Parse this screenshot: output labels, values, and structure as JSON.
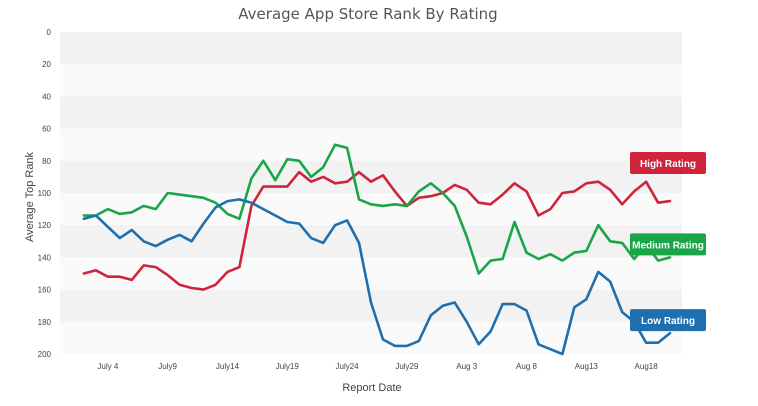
{
  "chart_data": {
    "type": "line",
    "title": "Average App Store Rank By Rating",
    "xlabel": "Report Date",
    "ylabel": "Average Top Rank",
    "ylim": [
      0,
      200
    ],
    "y_inverted": true,
    "y_ticks": [
      0,
      20,
      40,
      60,
      80,
      100,
      120,
      140,
      160,
      180,
      200
    ],
    "x_ticks": [
      {
        "day": 4,
        "label": "July 4"
      },
      {
        "day": 9,
        "label": "July9"
      },
      {
        "day": 14,
        "label": "July14"
      },
      {
        "day": 19,
        "label": "July19"
      },
      {
        "day": 24,
        "label": "July24"
      },
      {
        "day": 29,
        "label": "July29"
      },
      {
        "day": 34,
        "label": "Aug 3"
      },
      {
        "day": 39,
        "label": "Aug 8"
      },
      {
        "day": 44,
        "label": "Aug13"
      },
      {
        "day": 49,
        "label": "Aug18"
      }
    ],
    "x_day_range": [
      0,
      52
    ],
    "grid": "horizontal-bands",
    "legend_placement": "right",
    "series": [
      {
        "name": "High Rating",
        "color": "#d0233c",
        "x": [
          2,
          3,
          4,
          5,
          6,
          7,
          8,
          9,
          10,
          11,
          12,
          13,
          14,
          15,
          16,
          17,
          18,
          19,
          20,
          21,
          22,
          23,
          24,
          25,
          26,
          27,
          28,
          29,
          30,
          31,
          32,
          33,
          34,
          35,
          36,
          37,
          38,
          39,
          40,
          41,
          42,
          43,
          44,
          45,
          46,
          47,
          48,
          49,
          50,
          51
        ],
        "values": [
          150,
          148,
          152,
          152,
          154,
          145,
          146,
          151,
          157,
          159,
          160,
          157,
          149,
          146,
          108,
          96,
          96,
          96,
          87,
          93,
          90,
          94,
          93,
          87,
          93,
          89,
          99,
          108,
          103,
          102,
          100,
          95,
          98,
          106,
          107,
          101,
          94,
          99,
          114,
          110,
          100,
          99,
          94,
          93,
          98,
          107,
          99,
          93,
          106,
          105
        ]
      },
      {
        "name": "Medium Rating",
        "color": "#1aa548",
        "x": [
          2,
          3,
          4,
          5,
          6,
          7,
          8,
          9,
          10,
          11,
          12,
          13,
          14,
          15,
          16,
          17,
          18,
          19,
          20,
          21,
          22,
          23,
          24,
          25,
          26,
          27,
          28,
          29,
          30,
          31,
          32,
          33,
          34,
          35,
          36,
          37,
          38,
          39,
          40,
          41,
          42,
          43,
          44,
          45,
          46,
          47,
          48,
          49,
          50,
          51
        ],
        "values": [
          114,
          114,
          110,
          113,
          112,
          108,
          110,
          100,
          101,
          102,
          103,
          106,
          113,
          116,
          91,
          80,
          92,
          79,
          80,
          90,
          84,
          70,
          72,
          104,
          107,
          108,
          107,
          108,
          99,
          94,
          100,
          108,
          127,
          150,
          142,
          141,
          118,
          137,
          141,
          138,
          142,
          137,
          136,
          120,
          130,
          131,
          141,
          132,
          142,
          140
        ]
      },
      {
        "name": "Low Rating",
        "color": "#1f6fae",
        "x": [
          2,
          3,
          4,
          5,
          6,
          7,
          8,
          9,
          10,
          11,
          12,
          13,
          14,
          15,
          16,
          17,
          18,
          19,
          20,
          21,
          22,
          23,
          24,
          25,
          26,
          27,
          28,
          29,
          30,
          31,
          32,
          33,
          34,
          35,
          36,
          37,
          38,
          39,
          40,
          41,
          42,
          43,
          44,
          45,
          46,
          47,
          48,
          49,
          50,
          51
        ],
        "values": [
          116,
          114,
          121,
          128,
          123,
          130,
          133,
          129,
          126,
          130,
          119,
          109,
          105,
          104,
          106,
          110,
          114,
          118,
          119,
          128,
          131,
          120,
          117,
          131,
          168,
          191,
          195,
          195,
          192,
          176,
          170,
          168,
          180,
          194,
          186,
          169,
          169,
          173,
          194,
          197,
          200,
          171,
          166,
          149,
          155,
          174,
          180,
          193,
          193,
          187
        ]
      }
    ],
    "legend": [
      {
        "label": "High Rating",
        "color": "#d0233c"
      },
      {
        "label": "Medium Rating",
        "color": "#1aa548"
      },
      {
        "label": "Low Rating",
        "color": "#1f6fae"
      }
    ]
  }
}
